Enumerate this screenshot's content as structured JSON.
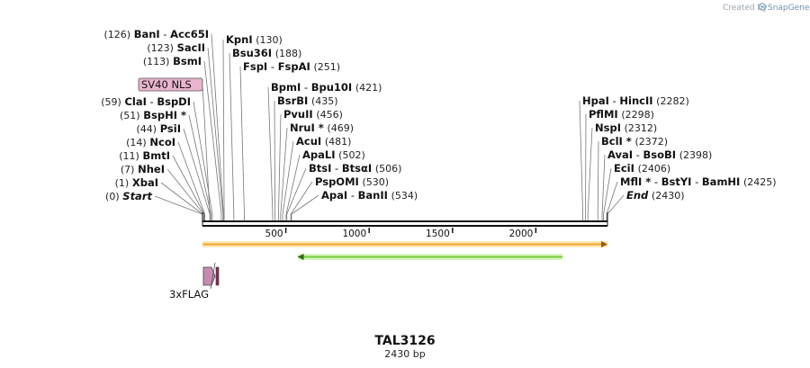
{
  "credit": {
    "prefix": "Created by",
    "brand": "SnapGene",
    "logo": "snapgene-logo-icon"
  },
  "map": {
    "name": "TAL3126",
    "length_label": "2430 bp",
    "length": 2430,
    "ticks": [
      {
        "value": 500,
        "label": "500"
      },
      {
        "value": 1000,
        "label": "1000"
      },
      {
        "value": 1500,
        "label": "1500"
      },
      {
        "value": 2000,
        "label": "2000"
      }
    ]
  },
  "left_sites": [
    {
      "names": [
        "BanI",
        "Acc65I"
      ],
      "pos_label": "(126)",
      "pos": 126
    },
    {
      "names": [
        "SacII"
      ],
      "pos_label": "(123)",
      "pos": 123
    },
    {
      "names": [
        "BsmI"
      ],
      "pos_label": "(113)",
      "pos": 113
    },
    {
      "names": [
        "ClaI",
        "BspDI"
      ],
      "pos_label": "(59)",
      "pos": 59
    },
    {
      "names": [
        "BspHI *"
      ],
      "pos_label": "(51)",
      "pos": 51
    },
    {
      "names": [
        "PsiI"
      ],
      "pos_label": "(44)",
      "pos": 44
    },
    {
      "names": [
        "NcoI"
      ],
      "pos_label": "(14)",
      "pos": 14
    },
    {
      "names": [
        "BmtI"
      ],
      "pos_label": "(11)",
      "pos": 11
    },
    {
      "names": [
        "NheI"
      ],
      "pos_label": "(7)",
      "pos": 7
    },
    {
      "names": [
        "XbaI"
      ],
      "pos_label": "(1)",
      "pos": 1
    },
    {
      "names": [
        "Start"
      ],
      "pos_label": "(0)",
      "pos": 0,
      "italic": true
    }
  ],
  "right_sites": [
    {
      "names": [
        "KpnI"
      ],
      "pos_label": "(130)",
      "pos": 130
    },
    {
      "names": [
        "Bsu36I"
      ],
      "pos_label": "(188)",
      "pos": 188
    },
    {
      "names": [
        "FspI",
        "FspAI"
      ],
      "pos_label": "(251)",
      "pos": 251
    },
    {
      "names": [
        "BpmI",
        "Bpu10I"
      ],
      "pos_label": "(421)",
      "pos": 421
    },
    {
      "names": [
        "BsrBI"
      ],
      "pos_label": "(435)",
      "pos": 435
    },
    {
      "names": [
        "PvuII"
      ],
      "pos_label": "(456)",
      "pos": 456
    },
    {
      "names": [
        "NruI *"
      ],
      "pos_label": "(469)",
      "pos": 469
    },
    {
      "names": [
        "AcuI"
      ],
      "pos_label": "(481)",
      "pos": 481
    },
    {
      "names": [
        "ApaLI"
      ],
      "pos_label": "(502)",
      "pos": 502
    },
    {
      "names": [
        "BtsI",
        "BtsαI"
      ],
      "pos_label": "(506)",
      "pos": 506
    },
    {
      "names": [
        "PspOMI"
      ],
      "pos_label": "(530)",
      "pos": 530
    },
    {
      "names": [
        "ApaI",
        "BanII"
      ],
      "pos_label": "(534)",
      "pos": 534
    },
    {
      "names": [
        "HpaI",
        "HincII"
      ],
      "pos_label": "(2282)",
      "pos": 2282
    },
    {
      "names": [
        "PflMI"
      ],
      "pos_label": "(2298)",
      "pos": 2298
    },
    {
      "names": [
        "NspI"
      ],
      "pos_label": "(2312)",
      "pos": 2312
    },
    {
      "names": [
        "BclI *"
      ],
      "pos_label": "(2372)",
      "pos": 2372
    },
    {
      "names": [
        "AvaI",
        "BsoBI"
      ],
      "pos_label": "(2398)",
      "pos": 2398
    },
    {
      "names": [
        "EciI"
      ],
      "pos_label": "(2406)",
      "pos": 2406
    },
    {
      "names": [
        "MflI *",
        "BstYI",
        "BamHI"
      ],
      "pos_label": "(2425)",
      "pos": 2425
    },
    {
      "names": [
        "End"
      ],
      "pos_label": "(2430)",
      "pos": 2430,
      "italic": true
    }
  ],
  "features": [
    {
      "name": "SV40 NLS",
      "kind": "boxed-label",
      "color": "#e8b4cf",
      "start": 36,
      "end": 56
    },
    {
      "name": "3xFLAG",
      "kind": "arrow-below",
      "color": "#c98ab0",
      "start": 1,
      "end": 75
    },
    {
      "name": "orange-ORF",
      "kind": "orf-forward",
      "color": "#f6a623",
      "start": 1,
      "end": 2430
    },
    {
      "name": "green-ORF",
      "kind": "orf-reverse",
      "color": "#6fcf3a",
      "start": 570,
      "end": 2160
    }
  ]
}
